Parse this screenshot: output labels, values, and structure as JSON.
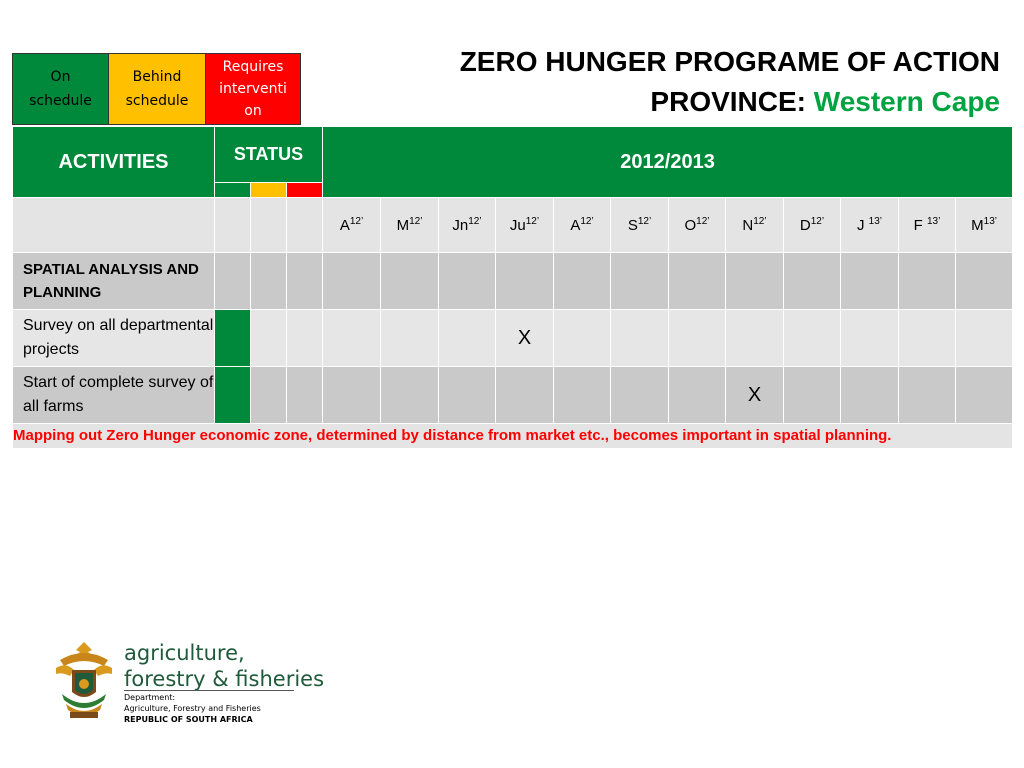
{
  "legend": {
    "on_schedule": "On schedule",
    "behind_schedule": "Behind schedule",
    "requires_intervention": "Requires interventi on"
  },
  "title": {
    "line1": "ZERO HUNGER PROGRAME OF ACTION",
    "province_label": "PROVINCE:",
    "province_name": "Western Cape"
  },
  "table": {
    "activities_header": "ACTIVITIES",
    "status_header": "STATUS",
    "period_header": "2012/2013",
    "months": [
      {
        "label": "A",
        "sup": "12’"
      },
      {
        "label": "M",
        "sup": "12’"
      },
      {
        "label": "Jn",
        "sup": "12’"
      },
      {
        "label": "Ju",
        "sup": "12’"
      },
      {
        "label": "A",
        "sup": "12’"
      },
      {
        "label": "S",
        "sup": "12’"
      },
      {
        "label": "O",
        "sup": "12’"
      },
      {
        "label": "N",
        "sup": "12’"
      },
      {
        "label": "D",
        "sup": "12’"
      },
      {
        "label": "J ",
        "sup": "13’"
      },
      {
        "label": "F ",
        "sup": "13’"
      },
      {
        "label": "M",
        "sup": "13’"
      }
    ],
    "section_title": "SPATIAL ANALYSIS AND PLANNING",
    "rows": [
      {
        "activity": "Survey on all departmental projects",
        "status": "On schedule",
        "mark_month": "Ju 12’",
        "mark": "X"
      },
      {
        "activity": "Start of complete survey of all farms",
        "status": "On schedule",
        "mark_month": "N 12’",
        "mark": "X"
      }
    ],
    "note": "Mapping out Zero Hunger economic zone, determined by distance from market etc., becomes important in spatial planning."
  },
  "footer": {
    "dept_line1": "agriculture,",
    "dept_line2": "forestry & fisheries",
    "small_line1": "Department:",
    "small_line2": "Agriculture, Forestry and Fisheries",
    "small_line3": "REPUBLIC OF SOUTH AFRICA"
  },
  "colors": {
    "green": "#00893a",
    "yellow": "#ffc000",
    "red": "#ff0000",
    "province_green": "#00a33f"
  }
}
